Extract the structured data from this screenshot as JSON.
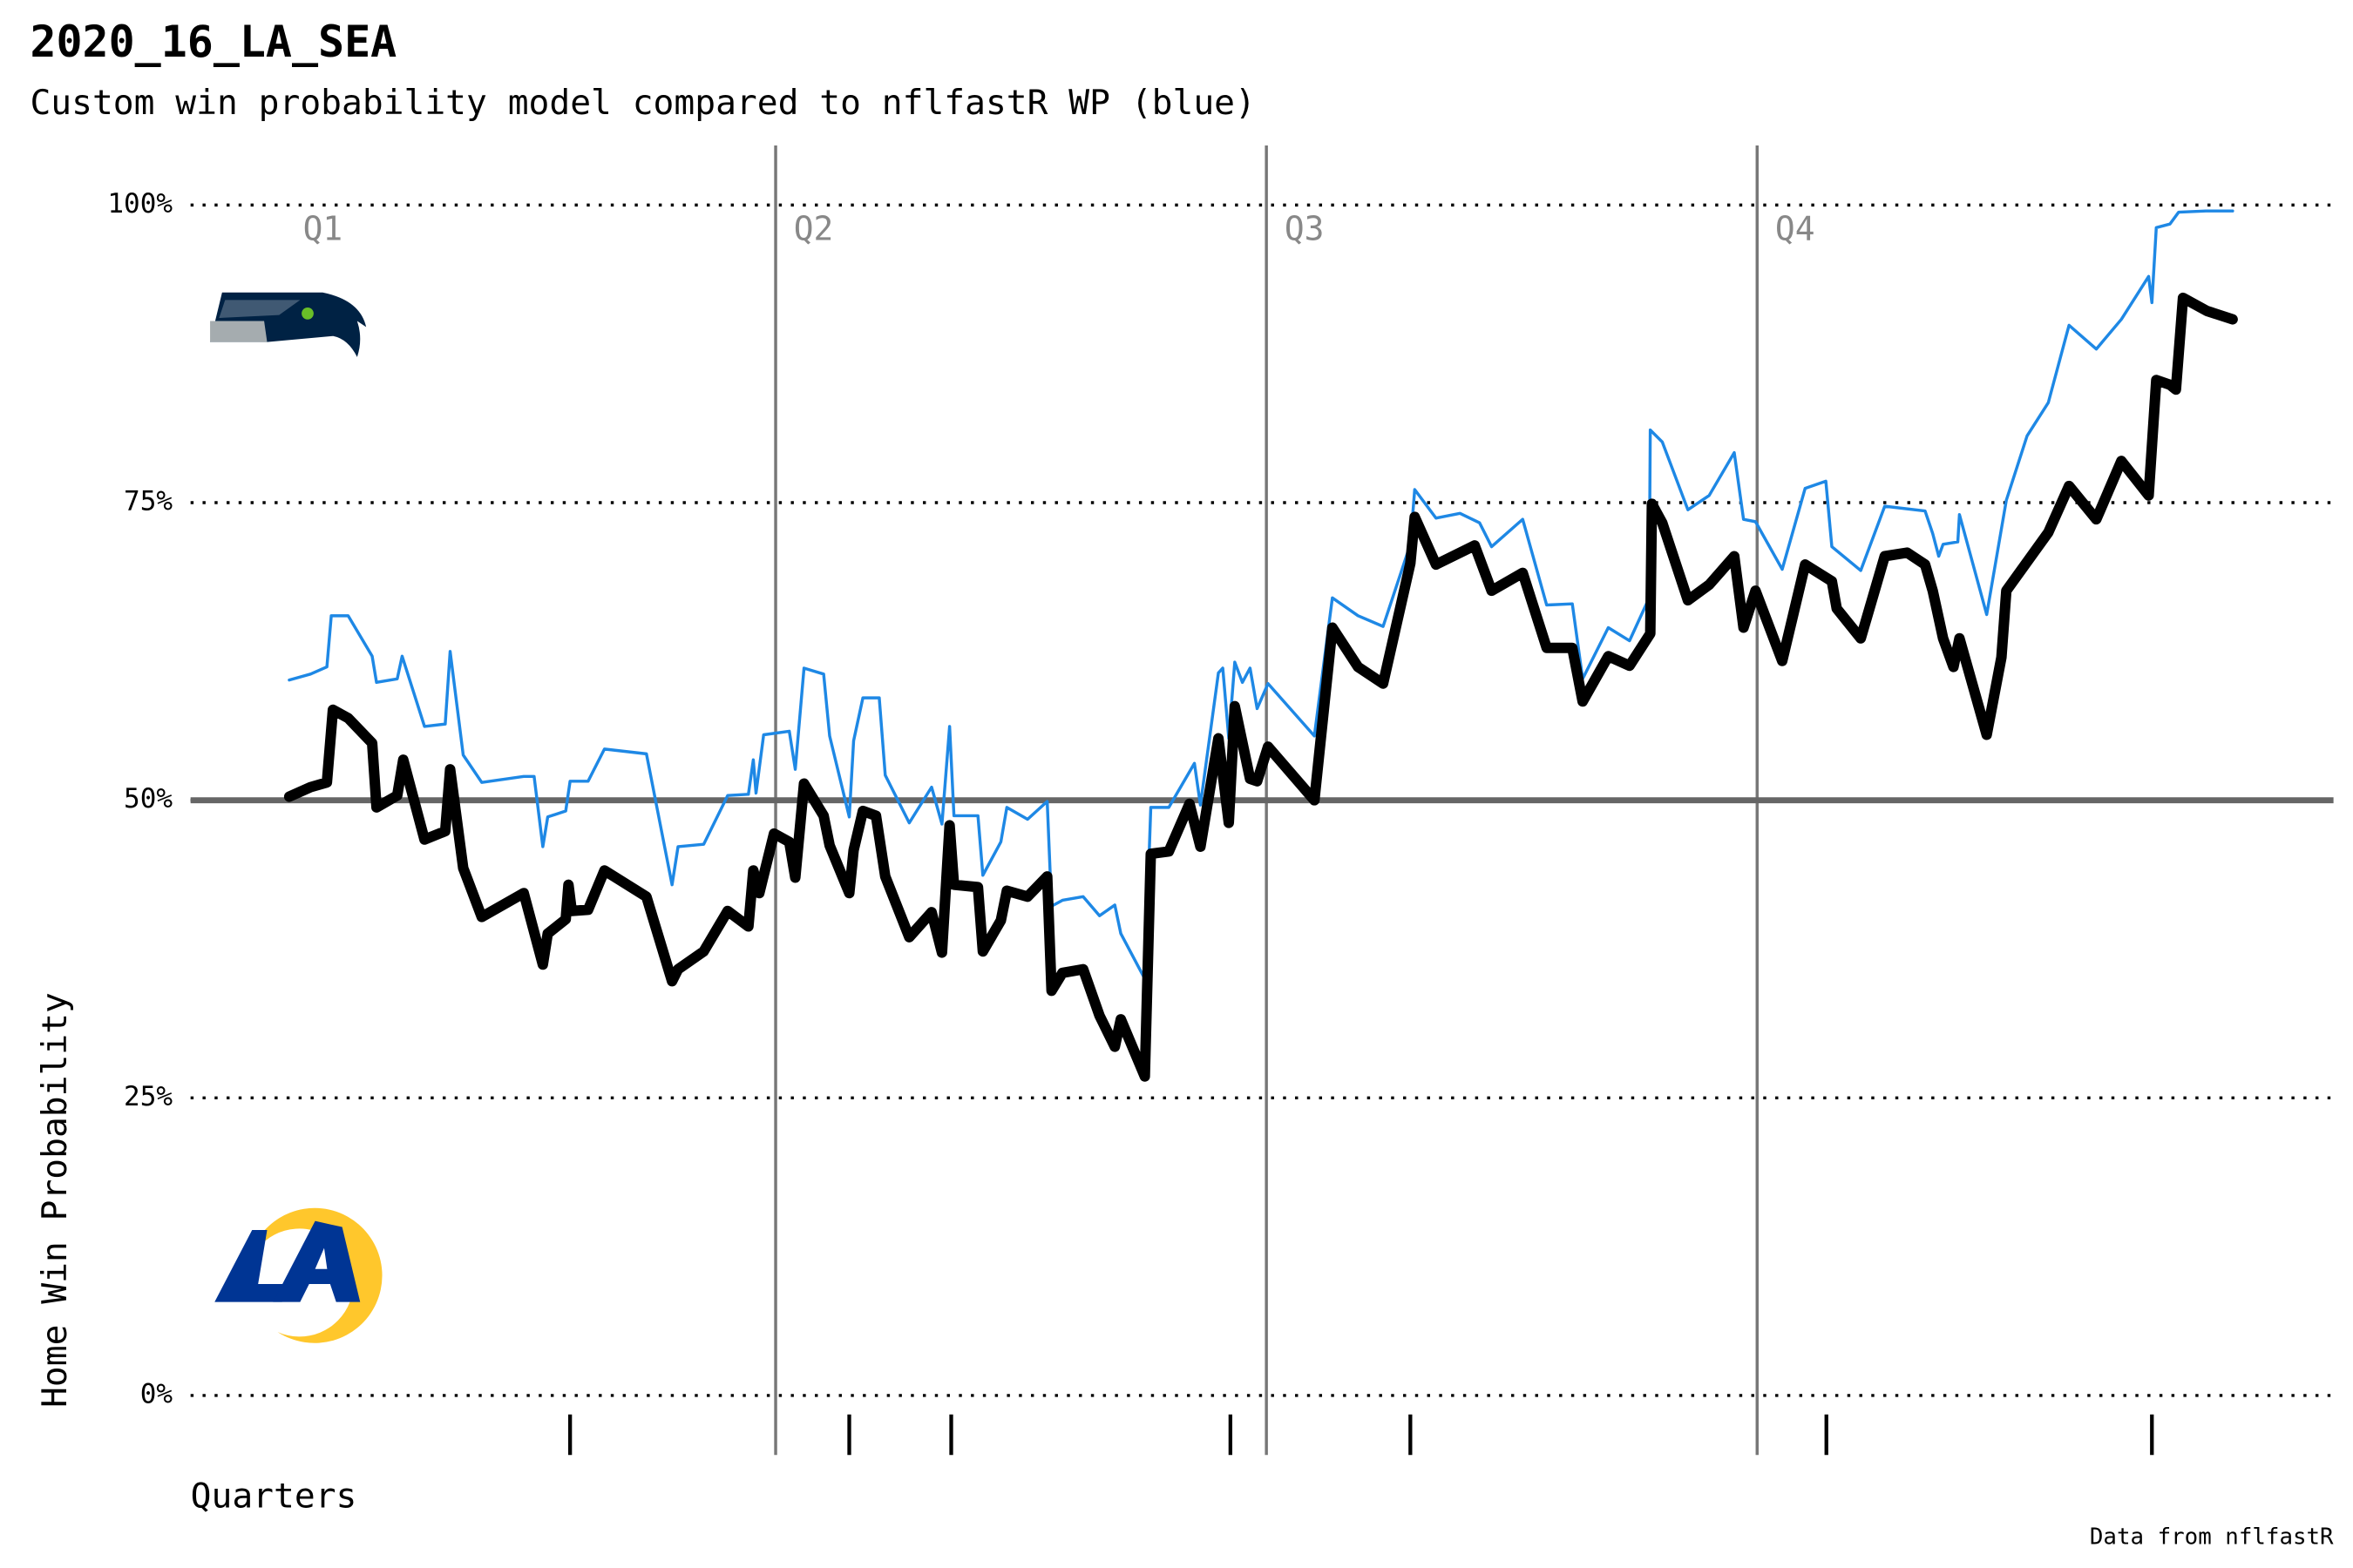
{
  "chart_data": {
    "type": "line",
    "title": "2020_16_LA_SEA",
    "subtitle": "Custom win probability model compared to nflfastR WP (blue)",
    "x_label": "Quarters",
    "y_label": "Home Win Probability",
    "caption": "Data from nflfastR",
    "xlim": [
      -173,
      3757
    ],
    "ylim": [
      -5,
      105
    ],
    "yticks": [
      {
        "value": 0,
        "label": "0%"
      },
      {
        "value": 25,
        "label": "25%"
      },
      {
        "value": 50,
        "label": "50%"
      },
      {
        "value": 75,
        "label": "75%"
      },
      {
        "value": 100,
        "label": "100%"
      }
    ],
    "grid": "dotted",
    "reference_line": 50,
    "quarter_lines": [
      900,
      1800,
      2700
    ],
    "quarter_labels": [
      {
        "label": "Q1",
        "x": 0
      },
      {
        "label": "Q2",
        "x": 900
      },
      {
        "label": "Q3",
        "x": 1800
      },
      {
        "label": "Q4",
        "x": 2700
      }
    ],
    "markers": [
      523,
      1035,
      1222,
      1734,
      2064,
      2827,
      3424
    ],
    "series": [
      {
        "name": "nflfastR WP",
        "color": "#1e88e5",
        "width": 2,
        "x": [
          8,
          47,
          77,
          85,
          116,
          160,
          168,
          206,
          215,
          256,
          294,
          303,
          327,
          361,
          438,
          457,
          473,
          482,
          515,
          523,
          556,
          586,
          663,
          710,
          721,
          768,
          812,
          850,
          859,
          864,
          878,
          925,
          936,
          952,
          988,
          999,
          1035,
          1043,
          1060,
          1090,
          1101,
          1145,
          1186,
          1205,
          1219,
          1227,
          1271,
          1280,
          1313,
          1324,
          1362,
          1398,
          1406,
          1426,
          1464,
          1494,
          1522,
          1533,
          1577,
          1588,
          1621,
          1668,
          1679,
          1712,
          1720,
          1731,
          1742,
          1756,
          1770,
          1783,
          1803,
          1888,
          1921,
          1968,
          2014,
          2064,
          2072,
          2111,
          2155,
          2191,
          2213,
          2270,
          2314,
          2361,
          2380,
          2427,
          2466,
          2502,
          2504,
          2526,
          2573,
          2612,
          2658,
          2675,
          2697,
          2746,
          2788,
          2826,
          2837,
          2890,
          2934,
          3008,
          3022,
          3033,
          3041,
          3068,
          3071,
          3121,
          3157,
          3195,
          3234,
          3272,
          3322,
          3368,
          3418,
          3424,
          3432,
          3457,
          3473,
          3523,
          3572
        ],
        "values": [
          60.1,
          60.6,
          61.2,
          65.5,
          65.5,
          62.1,
          59.9,
          60.2,
          62.1,
          56.2,
          56.4,
          62.5,
          53.8,
          51.5,
          52.0,
          52.0,
          46.1,
          48.6,
          49.1,
          51.6,
          51.6,
          54.3,
          53.9,
          42.9,
          46.1,
          46.3,
          50.4,
          50.5,
          53.4,
          50.6,
          55.5,
          55.8,
          52.6,
          61.1,
          60.6,
          55.4,
          48.6,
          55.0,
          58.6,
          58.6,
          52.1,
          48.1,
          51.1,
          48.0,
          56.2,
          48.7,
          48.7,
          43.7,
          46.5,
          49.4,
          48.4,
          49.9,
          41.1,
          41.6,
          41.9,
          40.3,
          41.2,
          38.8,
          35.0,
          49.4,
          49.4,
          53.1,
          49.6,
          60.7,
          61.1,
          55.2,
          61.6,
          59.9,
          61.1,
          57.7,
          59.8,
          55.4,
          67.0,
          65.5,
          64.6,
          71.5,
          76.1,
          73.7,
          74.1,
          73.3,
          71.3,
          73.6,
          66.4,
          66.5,
          60.2,
          64.5,
          63.4,
          67.0,
          81.1,
          80.1,
          74.4,
          75.6,
          79.2,
          73.6,
          73.4,
          69.4,
          76.2,
          76.8,
          71.3,
          69.3,
          74.7,
          74.3,
          72.4,
          70.5,
          71.5,
          71.7,
          74.0,
          65.6,
          75.2,
          80.6,
          83.4,
          89.9,
          87.9,
          90.4,
          94.0,
          91.8,
          98.1,
          98.4,
          99.4,
          99.5,
          99.5
        ]
      },
      {
        "name": "Custom WP",
        "color": "#000000",
        "width": 7,
        "x": [
          8,
          47,
          77,
          88,
          116,
          160,
          168,
          206,
          217,
          256,
          294,
          303,
          327,
          361,
          438,
          473,
          482,
          515,
          520,
          526,
          556,
          586,
          663,
          710,
          721,
          768,
          812,
          850,
          859,
          870,
          897,
          925,
          936,
          952,
          988,
          999,
          1035,
          1043,
          1060,
          1084,
          1101,
          1145,
          1186,
          1205,
          1219,
          1227,
          1271,
          1280,
          1313,
          1324,
          1362,
          1398,
          1406,
          1426,
          1464,
          1494,
          1522,
          1533,
          1577,
          1588,
          1621,
          1659,
          1679,
          1712,
          1731,
          1742,
          1770,
          1783,
          1803,
          1888,
          1921,
          1968,
          2014,
          2064,
          2072,
          2111,
          2182,
          2213,
          2270,
          2314,
          2361,
          2380,
          2427,
          2466,
          2504,
          2507,
          2526,
          2573,
          2612,
          2658,
          2675,
          2697,
          2746,
          2788,
          2837,
          2846,
          2890,
          2934,
          2975,
          3008,
          3022,
          3041,
          3060,
          3071,
          3121,
          3148,
          3157,
          3234,
          3272,
          3322,
          3368,
          3418,
          3432,
          3457,
          3468,
          3481,
          3525,
          3572
        ],
        "values": [
          50.3,
          51.1,
          51.5,
          57.6,
          56.9,
          54.8,
          49.4,
          50.4,
          53.4,
          46.7,
          47.4,
          52.6,
          44.3,
          40.2,
          42.2,
          36.2,
          38.8,
          40.0,
          42.9,
          40.7,
          40.8,
          44.1,
          41.9,
          34.8,
          35.8,
          37.3,
          40.7,
          39.4,
          44.1,
          42.2,
          47.2,
          46.5,
          43.5,
          51.4,
          48.7,
          46.2,
          42.2,
          45.8,
          49.1,
          48.7,
          43.6,
          38.5,
          40.6,
          37.2,
          47.9,
          42.9,
          42.7,
          37.3,
          39.9,
          42.4,
          41.9,
          43.6,
          34.0,
          35.5,
          35.8,
          31.9,
          29.3,
          31.6,
          26.8,
          45.5,
          45.7,
          49.7,
          46.1,
          55.2,
          48.1,
          57.9,
          51.8,
          51.6,
          54.5,
          50.0,
          64.5,
          61.2,
          59.8,
          69.9,
          73.8,
          69.8,
          71.4,
          67.6,
          69.1,
          62.8,
          62.8,
          58.3,
          62.1,
          61.3,
          64.0,
          74.9,
          73.3,
          66.8,
          68.1,
          70.5,
          64.5,
          67.6,
          61.7,
          69.8,
          68.4,
          66.1,
          63.6,
          70.5,
          70.8,
          69.8,
          67.6,
          63.6,
          61.2,
          63.6,
          55.5,
          62.0,
          67.6,
          72.5,
          76.4,
          73.6,
          78.5,
          75.6,
          85.3,
          84.9,
          84.5,
          92.2,
          91.1,
          90.4
        ]
      }
    ]
  }
}
